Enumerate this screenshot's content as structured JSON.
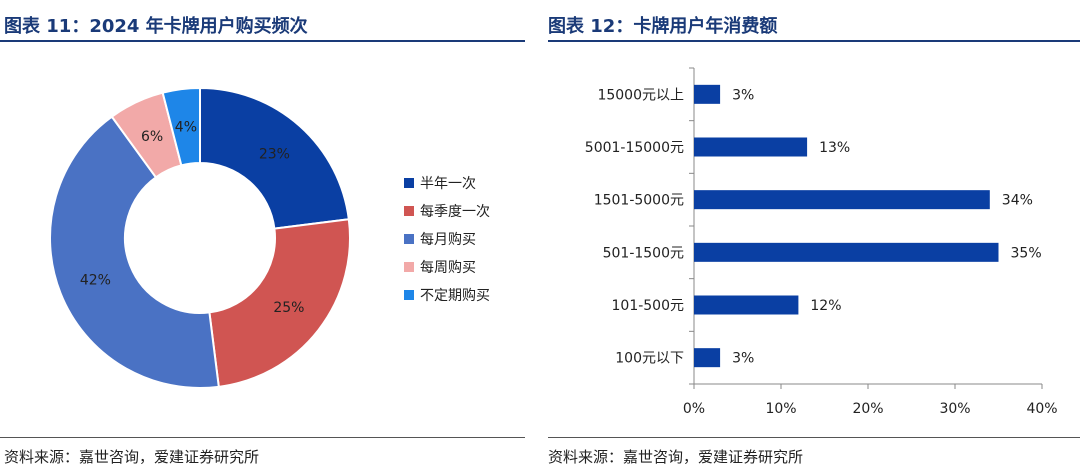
{
  "chart_data": [
    {
      "type": "pie",
      "subtype": "donut",
      "title": "图表 11：2024 年卡牌用户购买频次",
      "categories": [
        "半年一次",
        "每季度一次",
        "每月购买",
        "每周购买",
        "不定期购买"
      ],
      "values": [
        23,
        25,
        42,
        6,
        4
      ],
      "labels": [
        "23%",
        "25%",
        "42%",
        "6%",
        "4%"
      ],
      "colors": [
        "#0a3fa3",
        "#d05552",
        "#4a72c4",
        "#f2a9a8",
        "#1e86e8"
      ],
      "legend": "right",
      "source": "资料来源：嘉世咨询，爱建证券研究所"
    },
    {
      "type": "bar",
      "orientation": "horizontal",
      "title": "图表 12：卡牌用户年消费额",
      "categories": [
        "15000元以上",
        "5001-15000元",
        "1501-5000元",
        "501-1500元",
        "101-500元",
        "100元以下"
      ],
      "values": [
        3,
        13,
        34,
        35,
        12,
        3
      ],
      "labels": [
        "3%",
        "13%",
        "34%",
        "35%",
        "12%",
        "3%"
      ],
      "color": "#0a3fa3",
      "xlim": [
        0,
        40
      ],
      "xticks": [
        0,
        10,
        20,
        30,
        40
      ],
      "xtick_labels": [
        "0%",
        "10%",
        "20%",
        "30%",
        "40%"
      ],
      "grid": false,
      "source": "资料来源：嘉世咨询，爱建证券研究所"
    }
  ]
}
